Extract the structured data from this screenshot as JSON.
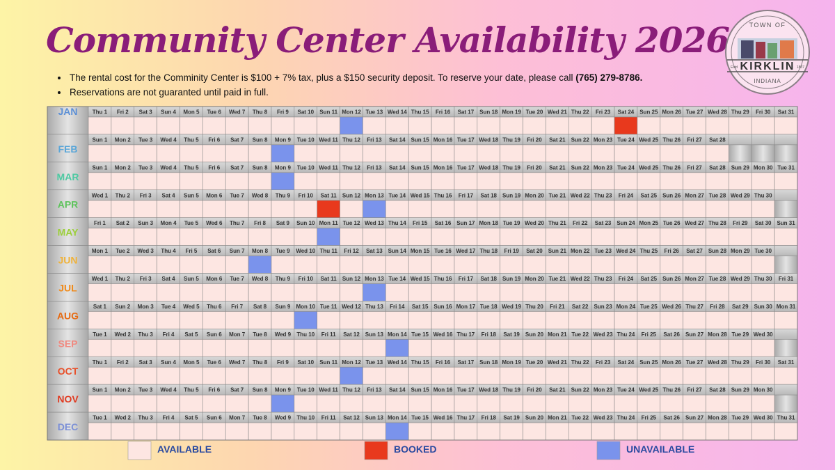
{
  "header": {
    "title": "Community Center Availability 2026"
  },
  "bullets": [
    {
      "text": "The rental cost for the Comminity Center is $100 + 7% tax, plus a $150 security deposit. To reserve your date, please call",
      "phone": "(765) 279-8786."
    },
    {
      "text": "Reservations are not guaranted until paid in full."
    }
  ],
  "logo": {
    "top": "TOWN OF",
    "name": "KIRKLIN",
    "bottom": "INDIANA",
    "left": "Estd",
    "right": "1837"
  },
  "legend": [
    {
      "label": "AVAILABLE",
      "color": "#fde6e2"
    },
    {
      "label": "BOOKED",
      "color": "#e8391d"
    },
    {
      "label": "UNAVAILABLE",
      "color": "#7a93ec"
    }
  ],
  "months": [
    {
      "name": "JAN",
      "color": "#5b8fd6",
      "booked": [
        24
      ],
      "unavailable": [
        12
      ],
      "days": [
        "Thu 1",
        "Fri 2",
        "Sat 3",
        "Sun 4",
        "Mon 5",
        "Tue 6",
        "Wed 7",
        "Thu 8",
        "Fri 9",
        "Sat 10",
        "Sun 11",
        "Mon 12",
        "Tue 13",
        "Wed 14",
        "Thu 15",
        "Fri 16",
        "Sat 17",
        "Sun 18",
        "Mon 19",
        "Tue 20",
        "Wed 21",
        "Thu 22",
        "Fri 23",
        "Sat 24",
        "Sun 25",
        "Mon 26",
        "Tue 27",
        "Wed 28",
        "Thu 29",
        "Fri 30",
        "Sat 31"
      ]
    },
    {
      "name": "FEB",
      "color": "#5aa6d8",
      "booked": [],
      "unavailable": [
        9
      ],
      "days": [
        "Sun 1",
        "Mon 2",
        "Tue 3",
        "Wed 4",
        "Thu 5",
        "Fri 6",
        "Sat 7",
        "Sun 8",
        "Mon 9",
        "Tue 10",
        "Wed 11",
        "Thu 12",
        "Fri 13",
        "Sat 14",
        "Sun 15",
        "Mon 16",
        "Tue 17",
        "Wed 18",
        "Thu 19",
        "Fri 20",
        "Sat 21",
        "Sun 22",
        "Mon 23",
        "Tue 24",
        "Wed 25",
        "Thu 26",
        "Fri 27",
        "Sat 28"
      ]
    },
    {
      "name": "MAR",
      "color": "#4ec9a2",
      "booked": [],
      "unavailable": [
        9
      ],
      "days": [
        "Sun 1",
        "Mon 2",
        "Tue 3",
        "Wed 4",
        "Thu 5",
        "Fri 6",
        "Sat 7",
        "Sun 8",
        "Mon 9",
        "Tue 10",
        "Wed 11",
        "Thu 12",
        "Fri 13",
        "Sat 14",
        "Sun 15",
        "Mon 16",
        "Tue 17",
        "Wed 18",
        "Thu 19",
        "Fri 20",
        "Sat 21",
        "Sun 22",
        "Mon 23",
        "Tue 24",
        "Wed 25",
        "Thu 26",
        "Fri 27",
        "Sat 28",
        "Sun 29",
        "Mon 30",
        "Tue 31"
      ]
    },
    {
      "name": "APR",
      "color": "#5ec35c",
      "booked": [
        11
      ],
      "unavailable": [
        13
      ],
      "days": [
        "Wed 1",
        "Thu 2",
        "Fri 3",
        "Sat 4",
        "Sun 5",
        "Mon 6",
        "Tue 7",
        "Wed 8",
        "Thu 9",
        "Fri 10",
        "Sat 11",
        "Sun 12",
        "Mon 13",
        "Tue 14",
        "Wed 15",
        "Thu 16",
        "Fri 17",
        "Sat 18",
        "Sun 19",
        "Mon 20",
        "Tue 21",
        "Wed 22",
        "Thu 23",
        "Fri 24",
        "Sat 25",
        "Sun 26",
        "Mon 27",
        "Tue 28",
        "Wed 29",
        "Thu 30"
      ]
    },
    {
      "name": "MAY",
      "color": "#9ccf3a",
      "booked": [],
      "unavailable": [
        11
      ],
      "days": [
        "Fri 1",
        "Sat 2",
        "Sun 3",
        "Mon 4",
        "Tue 5",
        "Wed 6",
        "Thu 7",
        "Fri 8",
        "Sat 9",
        "Sun 10",
        "Mon 11",
        "Tue 12",
        "Wed 13",
        "Thu 14",
        "Fri 15",
        "Sat 16",
        "Sun 17",
        "Mon 18",
        "Tue 19",
        "Wed 20",
        "Thu 21",
        "Fri 22",
        "Sat 23",
        "Sun 24",
        "Mon 25",
        "Tue 26",
        "Wed 27",
        "Thu 28",
        "Fri 29",
        "Sat 30",
        "Sun 31"
      ]
    },
    {
      "name": "JUN",
      "color": "#efb23a",
      "booked": [],
      "unavailable": [
        8
      ],
      "days": [
        "Mon 1",
        "Tue 2",
        "Wed 3",
        "Thu 4",
        "Fri 5",
        "Sat 6",
        "Sun 7",
        "Mon 8",
        "Tue 9",
        "Wed 10",
        "Thu 11",
        "Fri 12",
        "Sat 13",
        "Sun 14",
        "Mon 15",
        "Tue 16",
        "Wed 17",
        "Thu 18",
        "Fri 19",
        "Sat 20",
        "Sun 21",
        "Mon 22",
        "Tue 23",
        "Wed 24",
        "Thu 25",
        "Fri 26",
        "Sat 27",
        "Sun 28",
        "Mon 29",
        "Tue 30"
      ]
    },
    {
      "name": "JUL",
      "color": "#f08a1a",
      "booked": [],
      "unavailable": [
        13
      ],
      "days": [
        "Wed 1",
        "Thu 2",
        "Fri 3",
        "Sat 4",
        "Sun 5",
        "Mon 6",
        "Tue 7",
        "Wed 8",
        "Thu 9",
        "Fri 10",
        "Sat 11",
        "Sun 12",
        "Mon 13",
        "Tue 14",
        "Wed 15",
        "Thu 16",
        "Fri 17",
        "Sat 18",
        "Sun 19",
        "Mon 20",
        "Tue 21",
        "Wed 22",
        "Thu 23",
        "Fri 24",
        "Sat 25",
        "Sun 26",
        "Mon 27",
        "Tue 28",
        "Wed 29",
        "Thu 30",
        "Fri 31"
      ]
    },
    {
      "name": "AUG",
      "color": "#e66a12",
      "booked": [],
      "unavailable": [
        10
      ],
      "days": [
        "Sat 1",
        "Sun 2",
        "Mon 3",
        "Tue 4",
        "Wed 5",
        "Thu 6",
        "Fri 7",
        "Sat 8",
        "Sun 9",
        "Mon 10",
        "Tue 11",
        "Wed 12",
        "Thu 13",
        "Fri 14",
        "Sat 15",
        "Sun 16",
        "Mon 17",
        "Tue 18",
        "Wed 19",
        "Thu 20",
        "Fri 21",
        "Sat 22",
        "Sun 23",
        "Mon 24",
        "Tue 25",
        "Wed 26",
        "Thu 27",
        "Fri 28",
        "Sat 29",
        "Sun 30",
        "Mon 31"
      ]
    },
    {
      "name": "SEP",
      "color": "#f08a80",
      "booked": [],
      "unavailable": [
        14
      ],
      "days": [
        "Tue 1",
        "Wed 2",
        "Thu 3",
        "Fri 4",
        "Sat 5",
        "Sun 6",
        "Mon 7",
        "Tue 8",
        "Wed 9",
        "Thu 10",
        "Fri 11",
        "Sat 12",
        "Sun 13",
        "Mon 14",
        "Tue 15",
        "Wed 16",
        "Thu 17",
        "Fri 18",
        "Sat 19",
        "Sun 20",
        "Mon 21",
        "Tue 22",
        "Wed 23",
        "Thu 24",
        "Fri 25",
        "Sat 26",
        "Sun 27",
        "Mon 28",
        "Tue 29",
        "Wed 30"
      ]
    },
    {
      "name": "OCT",
      "color": "#e8502a",
      "booked": [],
      "unavailable": [
        12
      ],
      "days": [
        "Thu 1",
        "Fri 2",
        "Sat 3",
        "Sun 4",
        "Mon 5",
        "Tue 6",
        "Wed 7",
        "Thu 8",
        "Fri 9",
        "Sat 10",
        "Sun 11",
        "Mon 12",
        "Tue 13",
        "Wed 14",
        "Thu 15",
        "Fri 16",
        "Sat 17",
        "Sun 18",
        "Mon 19",
        "Tue 20",
        "Wed 21",
        "Thu 22",
        "Fri 23",
        "Sat 24",
        "Sun 25",
        "Mon 26",
        "Tue 27",
        "Wed 28",
        "Thu 29",
        "Fri 30",
        "Sat 31"
      ]
    },
    {
      "name": "NOV",
      "color": "#e03a20",
      "booked": [],
      "unavailable": [
        9
      ],
      "days": [
        "Sun 1",
        "Mon 2",
        "Tue 3",
        "Wed 4",
        "Thu 5",
        "Fri 6",
        "Sat 7",
        "Sun 8",
        "Mon 9",
        "Tue 10",
        "Wed 11",
        "Thu 12",
        "Fri 13",
        "Sat 14",
        "Sun 15",
        "Mon 16",
        "Tue 17",
        "Wed 18",
        "Thu 19",
        "Fri 20",
        "Sat 21",
        "Sun 22",
        "Mon 23",
        "Tue 24",
        "Wed 25",
        "Thu 26",
        "Fri 27",
        "Sat 28",
        "Sun 29",
        "Mon 30"
      ]
    },
    {
      "name": "DEC",
      "color": "#7b8fd6",
      "booked": [],
      "unavailable": [
        14
      ],
      "days": [
        "Tue 1",
        "Wed 2",
        "Thu 3",
        "Fri 4",
        "Sat 5",
        "Sun 6",
        "Mon 7",
        "Tue 8",
        "Wed 9",
        "Thu 10",
        "Fri 11",
        "Sat 12",
        "Sun 13",
        "Mon 14",
        "Tue 15",
        "Wed 16",
        "Thu 17",
        "Fri 18",
        "Sat 19",
        "Sun 20",
        "Mon 21",
        "Tue 22",
        "Wed 23",
        "Thu 24",
        "Fri 25",
        "Sat 26",
        "Sun 27",
        "Mon 28",
        "Tue 29",
        "Wed 30",
        "Thu 31"
      ]
    }
  ]
}
